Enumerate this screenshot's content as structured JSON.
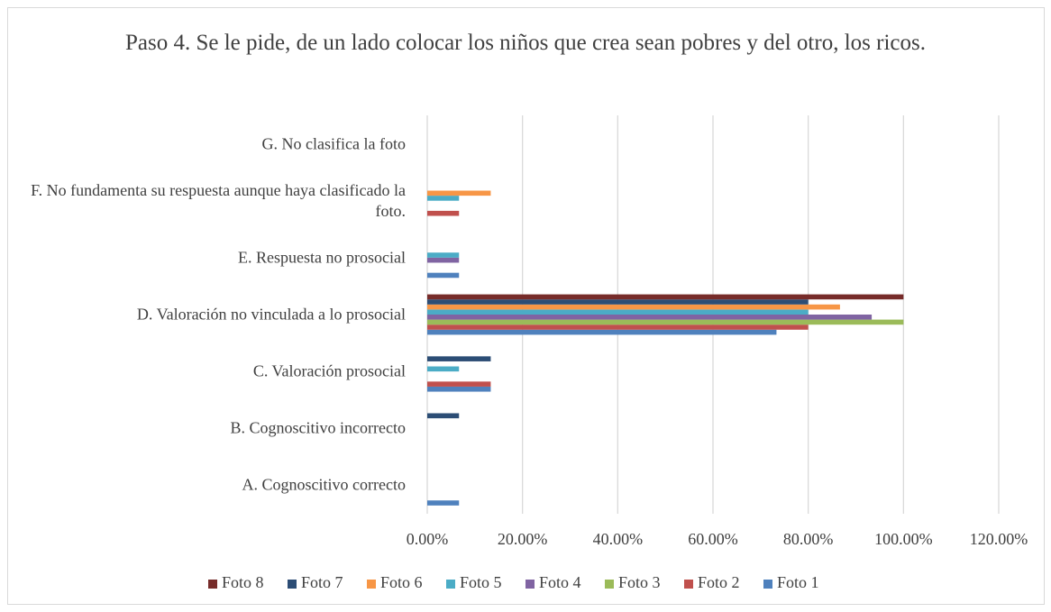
{
  "chart_data": {
    "type": "barh",
    "title": "Paso 4. Se le pide, de un lado colocar los niños que crea sean pobres y del otro, los ricos.",
    "categories": [
      "A. Cognoscitivo correcto",
      "B. Cognoscitivo incorrecto",
      "C. Valoración prosocial",
      "D. Valoración no vinculada a lo prosocial",
      "E. Respuesta no prosocial",
      "F. No fundamenta su respuesta aunque haya clasificado la foto.",
      "G. No clasifica la foto"
    ],
    "series": [
      {
        "name": "Foto 1",
        "color": "#4f81bd",
        "values": [
          6.67,
          0,
          13.33,
          73.33,
          6.67,
          0,
          0
        ]
      },
      {
        "name": "Foto 2",
        "color": "#c0504d",
        "values": [
          0,
          0,
          13.33,
          80,
          0,
          6.67,
          0
        ]
      },
      {
        "name": "Foto 3",
        "color": "#9bbb59",
        "values": [
          0,
          0,
          0,
          100,
          0,
          0,
          0
        ]
      },
      {
        "name": "Foto 4",
        "color": "#8064a2",
        "values": [
          0,
          0,
          0,
          93.33,
          6.67,
          0,
          0
        ]
      },
      {
        "name": "Foto 5",
        "color": "#4bacc6",
        "values": [
          0,
          0,
          6.67,
          80,
          6.67,
          6.67,
          0
        ]
      },
      {
        "name": "Foto 6",
        "color": "#f79646",
        "values": [
          0,
          0,
          0,
          86.67,
          0,
          13.33,
          0
        ]
      },
      {
        "name": "Foto 7",
        "color": "#2c4d75",
        "values": [
          0,
          6.67,
          13.33,
          80,
          0,
          0,
          0
        ]
      },
      {
        "name": "Foto 8",
        "color": "#772c2a",
        "values": [
          0,
          0,
          0,
          100,
          0,
          0,
          0
        ]
      }
    ],
    "xlim": [
      0,
      120
    ],
    "xticks": [
      {
        "value": 0,
        "label": "0.00%"
      },
      {
        "value": 20,
        "label": "20.00%"
      },
      {
        "value": 40,
        "label": "40.00%"
      },
      {
        "value": 60,
        "label": "60.00%"
      },
      {
        "value": 80,
        "label": "80.00%"
      },
      {
        "value": 100,
        "label": "100.00%"
      },
      {
        "value": 120,
        "label": "120.00%"
      }
    ],
    "grid": true,
    "legend": "bottom"
  }
}
